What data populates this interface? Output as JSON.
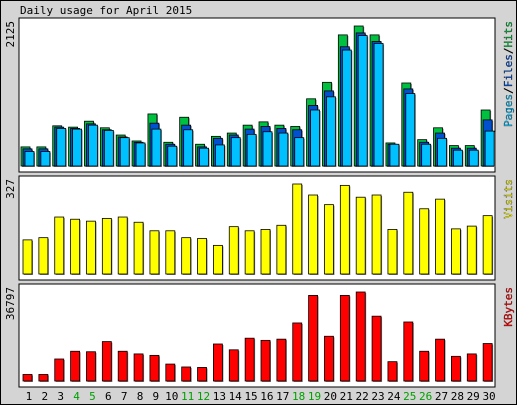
{
  "chart_data": {
    "type": "bar",
    "title": "Daily usage for April 2015",
    "categories": [
      "1",
      "2",
      "3",
      "4",
      "5",
      "6",
      "7",
      "8",
      "9",
      "10",
      "11",
      "12",
      "13",
      "14",
      "15",
      "16",
      "17",
      "18",
      "19",
      "20",
      "21",
      "22",
      "23",
      "24",
      "25",
      "26",
      "27",
      "28",
      "29",
      "30"
    ],
    "weekend_days": [
      "4",
      "5",
      "11",
      "12",
      "18",
      "19",
      "25",
      "26"
    ],
    "colors": {
      "hits": "#00c040",
      "files": "#0050d0",
      "pages": "#00c0ff",
      "visits": "#ffff00",
      "kbytes": "#ff0000",
      "weekday_label": "#000000",
      "weekend_label": "#00a000"
    },
    "panels": [
      {
        "ylabel_max": "2125",
        "ymax": 2125,
        "legend": [
          {
            "label": "Pages",
            "color": "#00c0ff"
          },
          {
            "label": "/",
            "color": "#000000"
          },
          {
            "label": "Files",
            "color": "#0050d0"
          },
          {
            "label": "/",
            "color": "#000000"
          },
          {
            "label": "Hits",
            "color": "#00c040"
          }
        ],
        "series": [
          {
            "key": "hits",
            "values": [
              290,
              290,
              610,
              590,
              680,
              580,
              470,
              380,
              790,
              360,
              740,
              330,
              450,
              500,
              620,
              670,
              620,
              600,
              1020,
              1270,
              1990,
              2125,
              1990,
              350,
              1260,
              400,
              580,
              310,
              310,
              850
            ]
          },
          {
            "key": "files",
            "values": [
              260,
              260,
              590,
              570,
              640,
              550,
              440,
              360,
              650,
              330,
              620,
              290,
              420,
              470,
              560,
              600,
              570,
              550,
              920,
              1140,
              1810,
              2020,
              1890,
              330,
              1170,
              360,
              500,
              270,
              270,
              700
            ]
          },
          {
            "key": "pages",
            "values": [
              220,
              220,
              570,
              560,
              620,
              540,
              430,
              350,
              560,
              300,
              550,
              270,
              320,
              430,
              480,
              520,
              500,
              430,
              850,
              1050,
              1760,
              1980,
              1860,
              330,
              1100,
              330,
              420,
              240,
              240,
              530
            ]
          }
        ]
      },
      {
        "ylabel_max": "327",
        "ymax": 327,
        "legend": [
          {
            "label": "Visits",
            "color": "#ffff00"
          }
        ],
        "series": [
          {
            "key": "visits",
            "values": [
              124,
              132,
              207,
              199,
              192,
              202,
              207,
              188,
              157,
              157,
              132,
              129,
              104,
              172,
              157,
              162,
              177,
              327,
              287,
              252,
              322,
              279,
              287,
              162,
              297,
              237,
              272,
              164,
              174,
              212
            ]
          }
        ]
      },
      {
        "ylabel_max": "36797",
        "ymax": 36797,
        "legend": [
          {
            "label": "KBytes",
            "color": "#ff0000"
          }
        ],
        "series": [
          {
            "key": "kbytes",
            "values": [
              2700,
              2700,
              9100,
              12300,
              12100,
              16300,
              12300,
              11200,
              10600,
              7000,
              5800,
              5600,
              15300,
              12900,
              17700,
              16800,
              17300,
              24000,
              35400,
              18500,
              35400,
              36797,
              26800,
              8000,
              24400,
              12300,
              17300,
              10200,
              11200,
              15500
            ]
          }
        ]
      }
    ]
  }
}
